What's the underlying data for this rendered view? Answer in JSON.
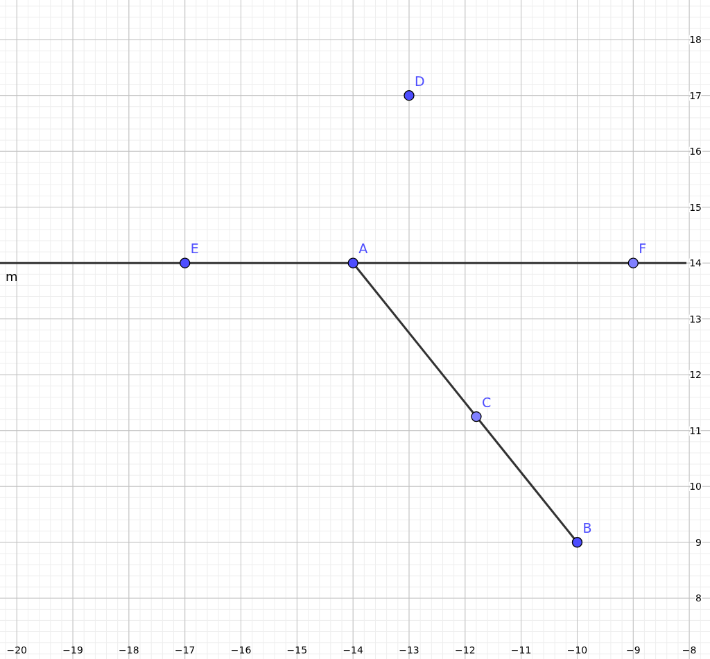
{
  "chart_data": {
    "type": "scatter",
    "xlim": [
      -20.3,
      -7.63
    ],
    "ylim": [
      6.91,
      18.71
    ],
    "xticks": [
      {
        "value": -20,
        "label": "−20"
      },
      {
        "value": -19,
        "label": "−19"
      },
      {
        "value": -18,
        "label": "−18"
      },
      {
        "value": -17,
        "label": "−17"
      },
      {
        "value": -16,
        "label": "−16"
      },
      {
        "value": -15,
        "label": "−15"
      },
      {
        "value": -14,
        "label": "−14"
      },
      {
        "value": -13,
        "label": "−13"
      },
      {
        "value": -12,
        "label": "−12"
      },
      {
        "value": -11,
        "label": "−11"
      },
      {
        "value": -10,
        "label": "−10"
      },
      {
        "value": -9,
        "label": "−9"
      },
      {
        "value": -8,
        "label": "−8"
      }
    ],
    "yticks": [
      8,
      9,
      10,
      11,
      12,
      13,
      14,
      15,
      16,
      17,
      18
    ],
    "grid": true,
    "ref_lines": [
      {
        "axis": "y",
        "value": 14,
        "label": "m",
        "color": "#333333"
      }
    ],
    "series": [
      {
        "type": "line",
        "x": [
          -14,
          -10
        ],
        "values": [
          14,
          9
        ],
        "color": "#333333"
      },
      {
        "marker": "circle",
        "x": [
          -14,
          -10,
          -11.8,
          -13,
          -17,
          -9
        ],
        "values": [
          14,
          9,
          11.25,
          17,
          14,
          14
        ],
        "colors": [
          "#4d4dff",
          "#4d4dff",
          "#8080ff",
          "#4d4dff",
          "#4d4dff",
          "#8080ff"
        ]
      }
    ],
    "annotations": [
      {
        "text": "A",
        "x": -14,
        "y": 14
      },
      {
        "text": "B",
        "x": -10,
        "y": 9
      },
      {
        "text": "C",
        "x": -11.8,
        "y": 11.25
      },
      {
        "text": "D",
        "x": -13,
        "y": 17
      },
      {
        "text": "E",
        "x": -17,
        "y": 14
      },
      {
        "text": "F",
        "x": -9,
        "y": 14
      }
    ]
  }
}
